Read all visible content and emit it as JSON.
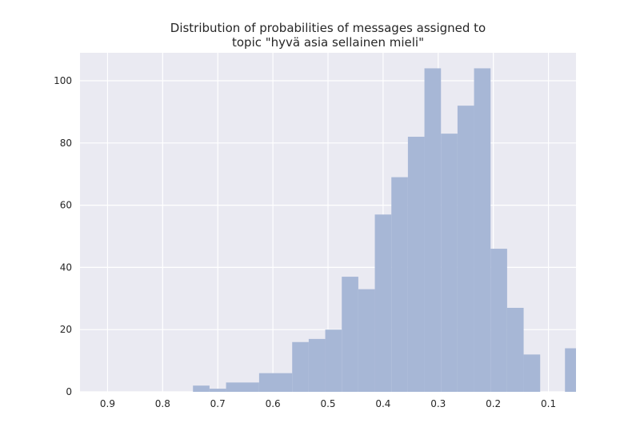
{
  "chart_data": {
    "type": "bar",
    "title_lines": [
      "Distribution of probabilities of messages assigned to",
      "topic \"hyvä asia sellainen mieli\""
    ],
    "xlabel": "",
    "ylabel": "",
    "x_axis_inverted": true,
    "xlim": [
      0.95,
      0.05
    ],
    "ylim": [
      0,
      109
    ],
    "x_ticks": [
      0.9,
      0.8,
      0.7,
      0.6,
      0.5,
      0.4,
      0.3,
      0.2,
      0.1
    ],
    "x_tick_labels": [
      "0.9",
      "0.8",
      "0.7",
      "0.6",
      "0.5",
      "0.4",
      "0.3",
      "0.2",
      "0.1"
    ],
    "y_ticks": [
      0,
      20,
      40,
      60,
      80,
      100
    ],
    "y_tick_labels": [
      "0",
      "20",
      "40",
      "60",
      "80",
      "100"
    ],
    "grid": true,
    "bar_color": "#a7b7d6",
    "background_color": "#eaeaf2",
    "grid_color": "#ffffff",
    "bins": [
      {
        "x_start": 0.745,
        "x_end": 0.715,
        "count": 2
      },
      {
        "x_start": 0.715,
        "x_end": 0.685,
        "count": 1
      },
      {
        "x_start": 0.685,
        "x_end": 0.625,
        "count": 3
      },
      {
        "x_start": 0.625,
        "x_end": 0.565,
        "count": 6
      },
      {
        "x_start": 0.565,
        "x_end": 0.535,
        "count": 16
      },
      {
        "x_start": 0.535,
        "x_end": 0.505,
        "count": 17
      },
      {
        "x_start": 0.505,
        "x_end": 0.475,
        "count": 20
      },
      {
        "x_start": 0.475,
        "x_end": 0.445,
        "count": 37
      },
      {
        "x_start": 0.445,
        "x_end": 0.415,
        "count": 33
      },
      {
        "x_start": 0.415,
        "x_end": 0.385,
        "count": 57
      },
      {
        "x_start": 0.385,
        "x_end": 0.355,
        "count": 69
      },
      {
        "x_start": 0.355,
        "x_end": 0.325,
        "count": 82
      },
      {
        "x_start": 0.325,
        "x_end": 0.295,
        "count": 104
      },
      {
        "x_start": 0.295,
        "x_end": 0.265,
        "count": 83
      },
      {
        "x_start": 0.265,
        "x_end": 0.235,
        "count": 92
      },
      {
        "x_start": 0.235,
        "x_end": 0.205,
        "count": 104
      },
      {
        "x_start": 0.205,
        "x_end": 0.175,
        "count": 46
      },
      {
        "x_start": 0.175,
        "x_end": 0.145,
        "count": 27
      },
      {
        "x_start": 0.145,
        "x_end": 0.115,
        "count": 12
      },
      {
        "x_start": 0.07,
        "x_end": 0.05,
        "count": 14
      }
    ]
  }
}
